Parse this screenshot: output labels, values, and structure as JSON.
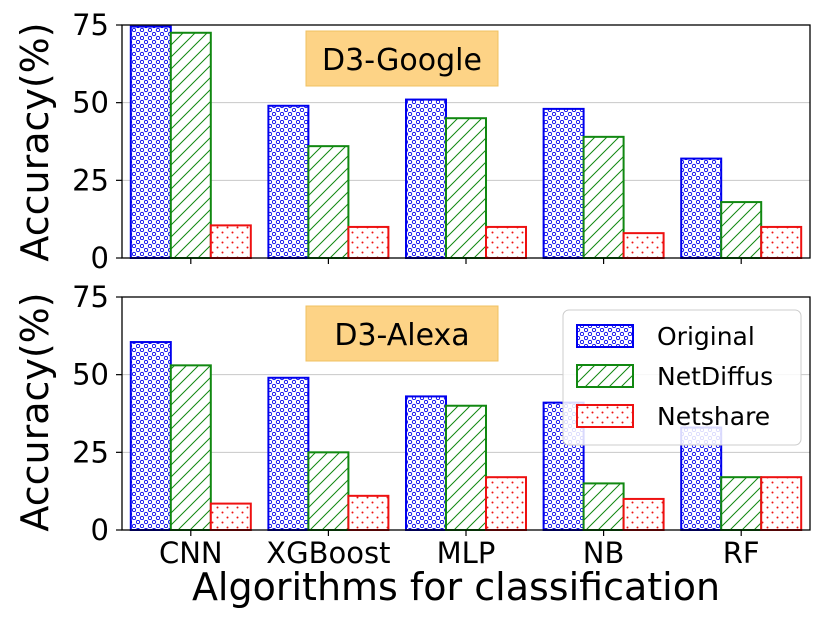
{
  "chart_data": [
    {
      "type": "bar",
      "title": "D3-Google",
      "ylabel": "Accuracy(%)",
      "ylim": [
        0,
        75
      ],
      "yticks": [
        0,
        25,
        50,
        75
      ],
      "grid": true,
      "categories": [
        "CNN",
        "XGBoost",
        "MLP",
        "NB",
        "RF"
      ],
      "series": [
        {
          "name": "Original",
          "values": [
            74.5,
            49,
            51,
            48,
            32
          ]
        },
        {
          "name": "NetDiffus",
          "values": [
            72.5,
            36,
            45,
            39,
            18
          ]
        },
        {
          "name": "Netshare",
          "values": [
            10.5,
            10,
            10,
            8,
            10
          ]
        }
      ]
    },
    {
      "type": "bar",
      "title": "D3-Alexa",
      "ylabel": "Accuracy(%)",
      "xlabel": "Algorithms for classification",
      "ylim": [
        0,
        75
      ],
      "yticks": [
        0,
        25,
        50,
        75
      ],
      "grid": true,
      "legend": "top-right",
      "categories": [
        "CNN",
        "XGBoost",
        "MLP",
        "NB",
        "RF"
      ],
      "series": [
        {
          "name": "Original",
          "values": [
            60.5,
            49,
            43,
            41,
            33
          ]
        },
        {
          "name": "NetDiffus",
          "values": [
            53,
            25,
            40,
            15,
            17
          ]
        },
        {
          "name": "Netshare",
          "values": [
            8.5,
            11,
            17,
            10,
            17
          ]
        }
      ]
    }
  ],
  "colors": {
    "Original": "#0000ee",
    "NetDiffus": "#118811",
    "Netshare": "#ee1111",
    "title_box": "#fdd386",
    "grid": "#c8c8c8"
  }
}
